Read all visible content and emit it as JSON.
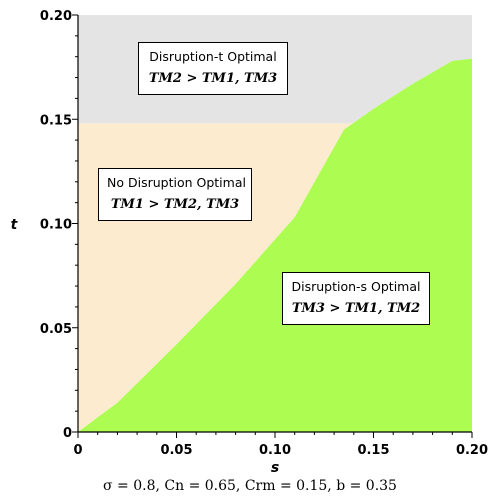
{
  "chart_data": {
    "type": "area",
    "xlabel": "s",
    "ylabel": "t",
    "xlim": [
      0,
      0.2
    ],
    "ylim": [
      0,
      0.2
    ],
    "x_ticks": [
      "0",
      "0.05",
      "0.10",
      "0.15",
      "0.20"
    ],
    "y_ticks": [
      "0",
      "0.05",
      "0.10",
      "0.15",
      "0.20"
    ],
    "colors": {
      "disruption_t": "#e4e4e4",
      "no_disruption": "#fdebd0",
      "disruption_s": "#acfc52"
    },
    "boundaries": {
      "disruption_t_threshold_t": 0.148,
      "disruption_s_upper_boundary": {
        "s": [
          0,
          0.02,
          0.05,
          0.08,
          0.11,
          0.135,
          0.15,
          0.17,
          0.19,
          0.2
        ],
        "t": [
          0,
          0.014,
          0.042,
          0.071,
          0.103,
          0.145,
          0.155,
          0.167,
          0.178,
          0.179
        ]
      }
    },
    "regions": [
      {
        "title": "Disruption-t Optimal",
        "subtitle": "TM2 > TM1, TM3"
      },
      {
        "title": "No Disruption Optimal",
        "subtitle": "TM1 > TM2, TM3"
      },
      {
        "title": "Disruption-s Optimal",
        "subtitle": "TM3 > TM1, TM2"
      }
    ],
    "caption": "σ = 0.8, Cn = 0.65, Crm = 0.15, b = 0.35"
  }
}
